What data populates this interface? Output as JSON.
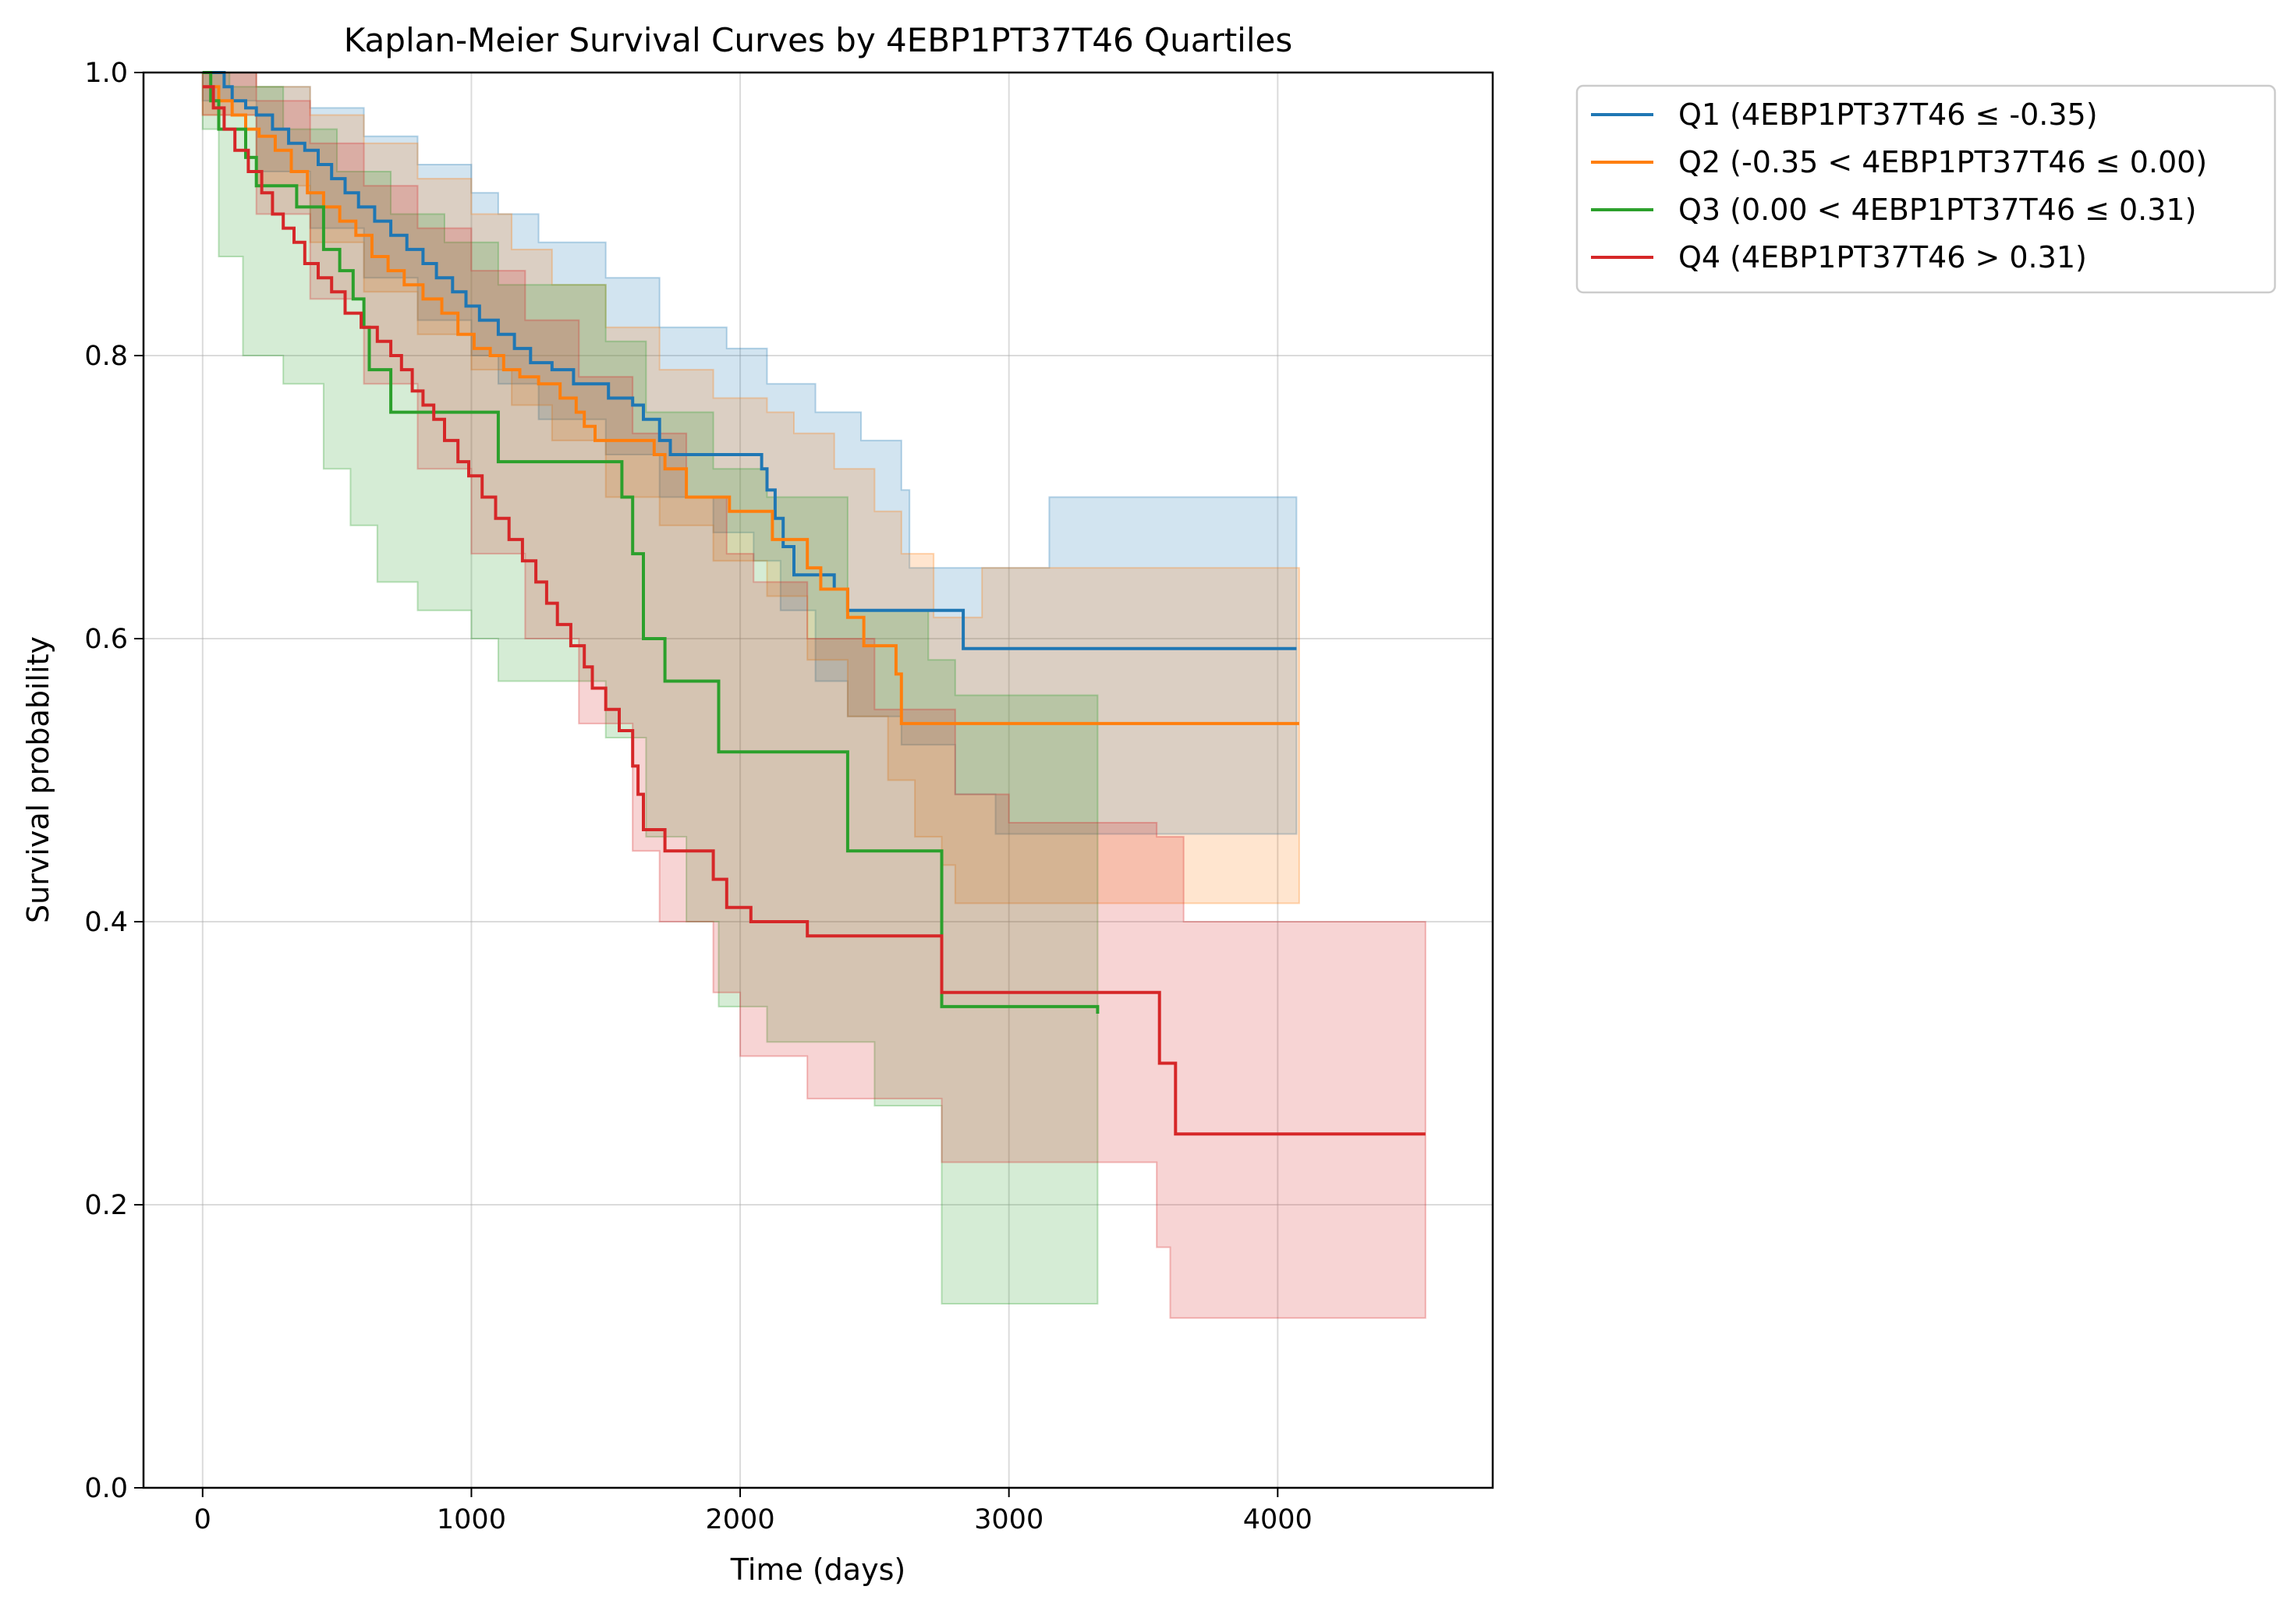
{
  "chart_data": {
    "type": "line",
    "title": "Kaplan-Meier Survival Curves by 4EBP1PT37T46 Quartiles",
    "xlabel": "Time (days)",
    "ylabel": "Survival probability",
    "xlim": [
      -220,
      4800
    ],
    "ylim": [
      0,
      1
    ],
    "x_ticks": [
      0,
      1000,
      2000,
      3000,
      4000
    ],
    "y_ticks": [
      0.0,
      0.2,
      0.4,
      0.6,
      0.8,
      1.0
    ],
    "x_tick_labels": [
      "0",
      "1000",
      "2000",
      "3000",
      "4000"
    ],
    "y_tick_labels": [
      "0.0",
      "0.2",
      "0.4",
      "0.6",
      "0.8",
      "1.0"
    ],
    "grid": true,
    "legend_position": "outside-top-right",
    "step": "post",
    "series": [
      {
        "name": "Q1 (4EBP1PT37T46 ≤ -0.35)",
        "color": "#1f77b4",
        "points": [
          [
            0,
            1.0
          ],
          [
            80,
            0.99
          ],
          [
            110,
            0.98
          ],
          [
            160,
            0.975
          ],
          [
            200,
            0.97
          ],
          [
            260,
            0.96
          ],
          [
            320,
            0.95
          ],
          [
            380,
            0.945
          ],
          [
            430,
            0.935
          ],
          [
            480,
            0.925
          ],
          [
            530,
            0.915
          ],
          [
            580,
            0.905
          ],
          [
            640,
            0.895
          ],
          [
            700,
            0.885
          ],
          [
            760,
            0.875
          ],
          [
            820,
            0.865
          ],
          [
            870,
            0.855
          ],
          [
            930,
            0.845
          ],
          [
            980,
            0.835
          ],
          [
            1030,
            0.825
          ],
          [
            1100,
            0.815
          ],
          [
            1160,
            0.805
          ],
          [
            1220,
            0.795
          ],
          [
            1300,
            0.79
          ],
          [
            1380,
            0.78
          ],
          [
            1500,
            0.78
          ],
          [
            1510,
            0.77
          ],
          [
            1600,
            0.765
          ],
          [
            1640,
            0.755
          ],
          [
            1700,
            0.74
          ],
          [
            1740,
            0.73
          ],
          [
            2080,
            0.72
          ],
          [
            2100,
            0.705
          ],
          [
            2130,
            0.685
          ],
          [
            2160,
            0.665
          ],
          [
            2200,
            0.645
          ],
          [
            2350,
            0.635
          ],
          [
            2400,
            0.62
          ],
          [
            2830,
            0.593
          ],
          [
            4070,
            0.593
          ]
        ],
        "ci_upper": [
          [
            0,
            1.0
          ],
          [
            200,
            0.99
          ],
          [
            400,
            0.975
          ],
          [
            600,
            0.955
          ],
          [
            800,
            0.935
          ],
          [
            1000,
            0.915
          ],
          [
            1100,
            0.9
          ],
          [
            1250,
            0.88
          ],
          [
            1500,
            0.855
          ],
          [
            1700,
            0.82
          ],
          [
            1950,
            0.805
          ],
          [
            2100,
            0.78
          ],
          [
            2280,
            0.76
          ],
          [
            2450,
            0.74
          ],
          [
            2600,
            0.705
          ],
          [
            2630,
            0.65
          ],
          [
            3000,
            0.65
          ],
          [
            3150,
            0.7
          ],
          [
            4070,
            0.7
          ]
        ],
        "ci_lower": [
          [
            0,
            0.98
          ],
          [
            200,
            0.93
          ],
          [
            400,
            0.89
          ],
          [
            600,
            0.855
          ],
          [
            800,
            0.825
          ],
          [
            1000,
            0.8
          ],
          [
            1100,
            0.78
          ],
          [
            1250,
            0.755
          ],
          [
            1500,
            0.73
          ],
          [
            1700,
            0.7
          ],
          [
            1900,
            0.675
          ],
          [
            2050,
            0.655
          ],
          [
            2150,
            0.62
          ],
          [
            2280,
            0.57
          ],
          [
            2400,
            0.545
          ],
          [
            2600,
            0.525
          ],
          [
            2800,
            0.49
          ],
          [
            2950,
            0.462
          ],
          [
            4070,
            0.462
          ]
        ]
      },
      {
        "name": "Q2 (-0.35 < 4EBP1PT37T46 ≤ 0.00)",
        "color": "#ff7f0e",
        "points": [
          [
            0,
            0.99
          ],
          [
            60,
            0.98
          ],
          [
            110,
            0.97
          ],
          [
            160,
            0.96
          ],
          [
            210,
            0.955
          ],
          [
            270,
            0.945
          ],
          [
            330,
            0.93
          ],
          [
            390,
            0.915
          ],
          [
            450,
            0.905
          ],
          [
            510,
            0.895
          ],
          [
            570,
            0.885
          ],
          [
            630,
            0.87
          ],
          [
            690,
            0.86
          ],
          [
            750,
            0.85
          ],
          [
            820,
            0.84
          ],
          [
            890,
            0.83
          ],
          [
            950,
            0.815
          ],
          [
            1010,
            0.805
          ],
          [
            1070,
            0.8
          ],
          [
            1120,
            0.79
          ],
          [
            1180,
            0.785
          ],
          [
            1250,
            0.78
          ],
          [
            1330,
            0.77
          ],
          [
            1390,
            0.76
          ],
          [
            1420,
            0.75
          ],
          [
            1460,
            0.74
          ],
          [
            1680,
            0.73
          ],
          [
            1720,
            0.72
          ],
          [
            1800,
            0.7
          ],
          [
            1960,
            0.69
          ],
          [
            2120,
            0.67
          ],
          [
            2250,
            0.65
          ],
          [
            2300,
            0.635
          ],
          [
            2400,
            0.615
          ],
          [
            2460,
            0.595
          ],
          [
            2580,
            0.575
          ],
          [
            2600,
            0.54
          ],
          [
            4080,
            0.54
          ]
        ],
        "ci_upper": [
          [
            0,
            1.0
          ],
          [
            200,
            0.99
          ],
          [
            400,
            0.97
          ],
          [
            600,
            0.95
          ],
          [
            800,
            0.925
          ],
          [
            1000,
            0.9
          ],
          [
            1150,
            0.875
          ],
          [
            1300,
            0.85
          ],
          [
            1500,
            0.82
          ],
          [
            1700,
            0.79
          ],
          [
            1900,
            0.77
          ],
          [
            2100,
            0.76
          ],
          [
            2200,
            0.745
          ],
          [
            2350,
            0.72
          ],
          [
            2500,
            0.69
          ],
          [
            2600,
            0.66
          ],
          [
            2720,
            0.615
          ],
          [
            2800,
            0.615
          ],
          [
            2900,
            0.65
          ],
          [
            4080,
            0.65
          ]
        ],
        "ci_lower": [
          [
            0,
            0.97
          ],
          [
            200,
            0.92
          ],
          [
            400,
            0.88
          ],
          [
            600,
            0.845
          ],
          [
            800,
            0.815
          ],
          [
            1000,
            0.79
          ],
          [
            1150,
            0.765
          ],
          [
            1300,
            0.74
          ],
          [
            1500,
            0.7
          ],
          [
            1700,
            0.68
          ],
          [
            1900,
            0.655
          ],
          [
            2100,
            0.63
          ],
          [
            2250,
            0.585
          ],
          [
            2400,
            0.545
          ],
          [
            2550,
            0.5
          ],
          [
            2650,
            0.46
          ],
          [
            2750,
            0.44
          ],
          [
            2800,
            0.413
          ],
          [
            4080,
            0.413
          ]
        ]
      },
      {
        "name": "Q3 (0.00 < 4EBP1PT37T46 ≤ 0.31)",
        "color": "#2ca02c",
        "points": [
          [
            0,
            1.0
          ],
          [
            30,
            0.98
          ],
          [
            60,
            0.96
          ],
          [
            160,
            0.94
          ],
          [
            200,
            0.92
          ],
          [
            350,
            0.905
          ],
          [
            450,
            0.875
          ],
          [
            510,
            0.86
          ],
          [
            560,
            0.84
          ],
          [
            600,
            0.82
          ],
          [
            620,
            0.79
          ],
          [
            700,
            0.76
          ],
          [
            1100,
            0.725
          ],
          [
            1560,
            0.7
          ],
          [
            1600,
            0.66
          ],
          [
            1640,
            0.6
          ],
          [
            1720,
            0.57
          ],
          [
            1920,
            0.52
          ],
          [
            2400,
            0.45
          ],
          [
            2750,
            0.34
          ],
          [
            3330,
            0.335
          ]
        ],
        "ci_upper": [
          [
            0,
            1.0
          ],
          [
            100,
            0.99
          ],
          [
            300,
            0.96
          ],
          [
            500,
            0.93
          ],
          [
            700,
            0.9
          ],
          [
            900,
            0.88
          ],
          [
            1100,
            0.85
          ],
          [
            1500,
            0.81
          ],
          [
            1650,
            0.76
          ],
          [
            1900,
            0.72
          ],
          [
            2100,
            0.7
          ],
          [
            2400,
            0.62
          ],
          [
            2700,
            0.585
          ],
          [
            2800,
            0.56
          ],
          [
            3330,
            0.56
          ]
        ],
        "ci_lower": [
          [
            0,
            0.96
          ],
          [
            60,
            0.87
          ],
          [
            150,
            0.8
          ],
          [
            300,
            0.78
          ],
          [
            450,
            0.72
          ],
          [
            550,
            0.68
          ],
          [
            650,
            0.64
          ],
          [
            800,
            0.62
          ],
          [
            1000,
            0.6
          ],
          [
            1100,
            0.57
          ],
          [
            1500,
            0.53
          ],
          [
            1650,
            0.46
          ],
          [
            1800,
            0.4
          ],
          [
            1920,
            0.34
          ],
          [
            2100,
            0.315
          ],
          [
            2500,
            0.27
          ],
          [
            2750,
            0.13
          ],
          [
            3330,
            0.13
          ]
        ]
      },
      {
        "name": "Q4 (4EBP1PT37T46 > 0.31)",
        "color": "#d62728",
        "points": [
          [
            0,
            0.99
          ],
          [
            40,
            0.975
          ],
          [
            80,
            0.96
          ],
          [
            120,
            0.945
          ],
          [
            170,
            0.93
          ],
          [
            220,
            0.915
          ],
          [
            260,
            0.9
          ],
          [
            300,
            0.89
          ],
          [
            340,
            0.88
          ],
          [
            380,
            0.865
          ],
          [
            430,
            0.855
          ],
          [
            480,
            0.845
          ],
          [
            530,
            0.83
          ],
          [
            590,
            0.82
          ],
          [
            650,
            0.81
          ],
          [
            700,
            0.8
          ],
          [
            740,
            0.79
          ],
          [
            780,
            0.775
          ],
          [
            820,
            0.765
          ],
          [
            860,
            0.755
          ],
          [
            900,
            0.74
          ],
          [
            950,
            0.725
          ],
          [
            990,
            0.715
          ],
          [
            1040,
            0.7
          ],
          [
            1090,
            0.685
          ],
          [
            1140,
            0.67
          ],
          [
            1190,
            0.655
          ],
          [
            1240,
            0.64
          ],
          [
            1280,
            0.625
          ],
          [
            1320,
            0.61
          ],
          [
            1370,
            0.595
          ],
          [
            1420,
            0.58
          ],
          [
            1450,
            0.565
          ],
          [
            1500,
            0.55
          ],
          [
            1550,
            0.535
          ],
          [
            1600,
            0.51
          ],
          [
            1620,
            0.49
          ],
          [
            1640,
            0.465
          ],
          [
            1720,
            0.45
          ],
          [
            1900,
            0.43
          ],
          [
            1950,
            0.41
          ],
          [
            2040,
            0.4
          ],
          [
            2250,
            0.39
          ],
          [
            2750,
            0.35
          ],
          [
            3560,
            0.3
          ],
          [
            3620,
            0.25
          ],
          [
            4550,
            0.25
          ]
        ],
        "ci_upper": [
          [
            0,
            1.0
          ],
          [
            200,
            0.98
          ],
          [
            400,
            0.95
          ],
          [
            600,
            0.92
          ],
          [
            800,
            0.89
          ],
          [
            1000,
            0.86
          ],
          [
            1200,
            0.825
          ],
          [
            1400,
            0.785
          ],
          [
            1600,
            0.745
          ],
          [
            1800,
            0.7
          ],
          [
            1950,
            0.66
          ],
          [
            2050,
            0.64
          ],
          [
            2250,
            0.6
          ],
          [
            2500,
            0.55
          ],
          [
            2800,
            0.49
          ],
          [
            3000,
            0.47
          ],
          [
            3550,
            0.46
          ],
          [
            3650,
            0.4
          ],
          [
            4550,
            0.4
          ]
        ],
        "ci_lower": [
          [
            0,
            0.97
          ],
          [
            200,
            0.9
          ],
          [
            400,
            0.84
          ],
          [
            600,
            0.78
          ],
          [
            800,
            0.72
          ],
          [
            1000,
            0.66
          ],
          [
            1200,
            0.6
          ],
          [
            1400,
            0.54
          ],
          [
            1600,
            0.45
          ],
          [
            1700,
            0.4
          ],
          [
            1900,
            0.35
          ],
          [
            2000,
            0.305
          ],
          [
            2250,
            0.275
          ],
          [
            2750,
            0.23
          ],
          [
            3000,
            0.23
          ],
          [
            3550,
            0.17
          ],
          [
            3600,
            0.12
          ],
          [
            4550,
            0.12
          ]
        ]
      }
    ]
  }
}
